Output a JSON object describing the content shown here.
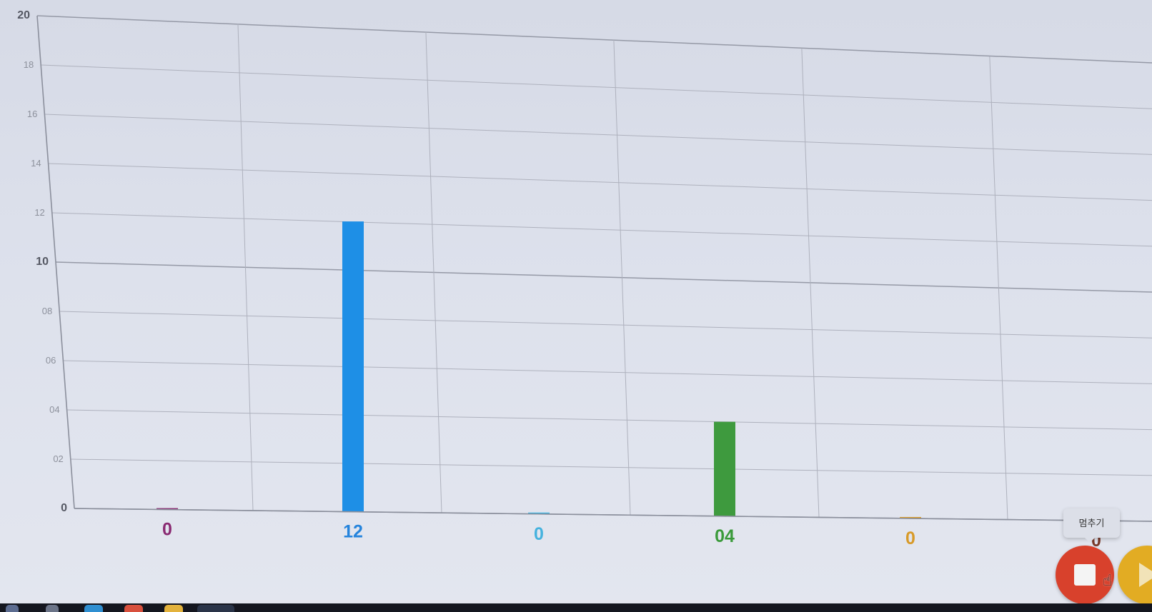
{
  "chart_data": {
    "type": "bar",
    "title": "",
    "xlabel": "",
    "ylabel": "",
    "ylim": [
      0,
      20
    ],
    "grid": true,
    "y_ticks": [
      "0",
      "02",
      "04",
      "06",
      "08",
      "10",
      "12",
      "14",
      "16",
      "18",
      "20"
    ],
    "categories": [
      "",
      "",
      "",
      "",
      "",
      ""
    ],
    "values": [
      0,
      12,
      0,
      4,
      0,
      0
    ],
    "value_labels": [
      "0",
      "12",
      "0",
      "04",
      "0",
      "0"
    ],
    "bar_colors": [
      "#8a2a72",
      "#1e8fe6",
      "#3bb3e0",
      "#3e9a3e",
      "#d99a26",
      "#8a2a72"
    ],
    "label_colors": [
      "#8a2a72",
      "#2584dc",
      "#45b2de",
      "#3a9a3a",
      "#d89a28",
      "#7a3a2a"
    ]
  },
  "controls": {
    "tooltip_label": "멈추기",
    "stop_icon": "stop-icon",
    "play_icon": "play-icon",
    "cursor_icon": "hand-pointer-icon"
  }
}
